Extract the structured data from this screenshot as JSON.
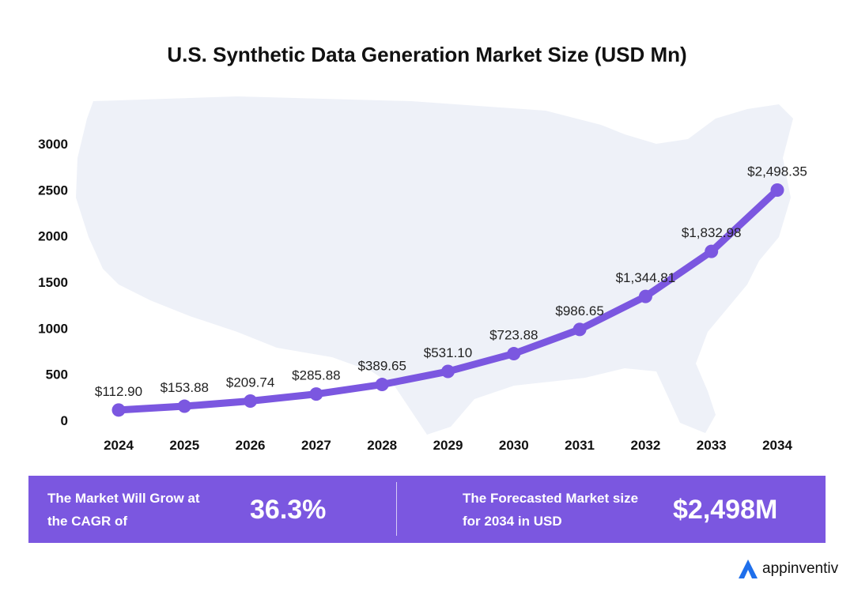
{
  "title": "U.S. Synthetic Data Generation Market Size (USD Mn)",
  "colors": {
    "accent": "#7b57e0",
    "banner": "#7b57e0",
    "map": "#eef1f8",
    "logo": "#1f6feb"
  },
  "chart_data": {
    "type": "line",
    "title": "U.S. Synthetic Data Generation Market Size (USD Mn)",
    "categories": [
      "2024",
      "2025",
      "2026",
      "2027",
      "2028",
      "2029",
      "2030",
      "2031",
      "2032",
      "2033",
      "2034"
    ],
    "series": [
      {
        "values": [
          112.9,
          153.88,
          209.74,
          285.88,
          389.65,
          531.1,
          723.88,
          986.65,
          1344.81,
          1832.98,
          2498.35
        ],
        "data_labels": [
          "$112.90",
          "$153.88",
          "$209.74",
          "$285.88",
          "$389.65",
          "$531.10",
          "$723.88",
          "$986.65",
          "$1,344.81",
          "$1,832.98",
          "$2,498.35"
        ]
      }
    ],
    "yticks": [
      "0",
      "500",
      "1000",
      "1500",
      "2000",
      "2500",
      "3000"
    ],
    "ylim": [
      0,
      3000
    ],
    "xlabel": "",
    "ylabel": "",
    "grid": false,
    "background": "us-map-silhouette"
  },
  "banner": {
    "cagr_label": "The Market Will Grow at the CAGR of",
    "cagr_value": "36.3%",
    "forecast_label": "The Forecasted Market size for 2034 in USD",
    "forecast_value": "$2,498M"
  },
  "logo": {
    "text": "appinventiv",
    "icon": "appinventiv-logo-icon"
  }
}
